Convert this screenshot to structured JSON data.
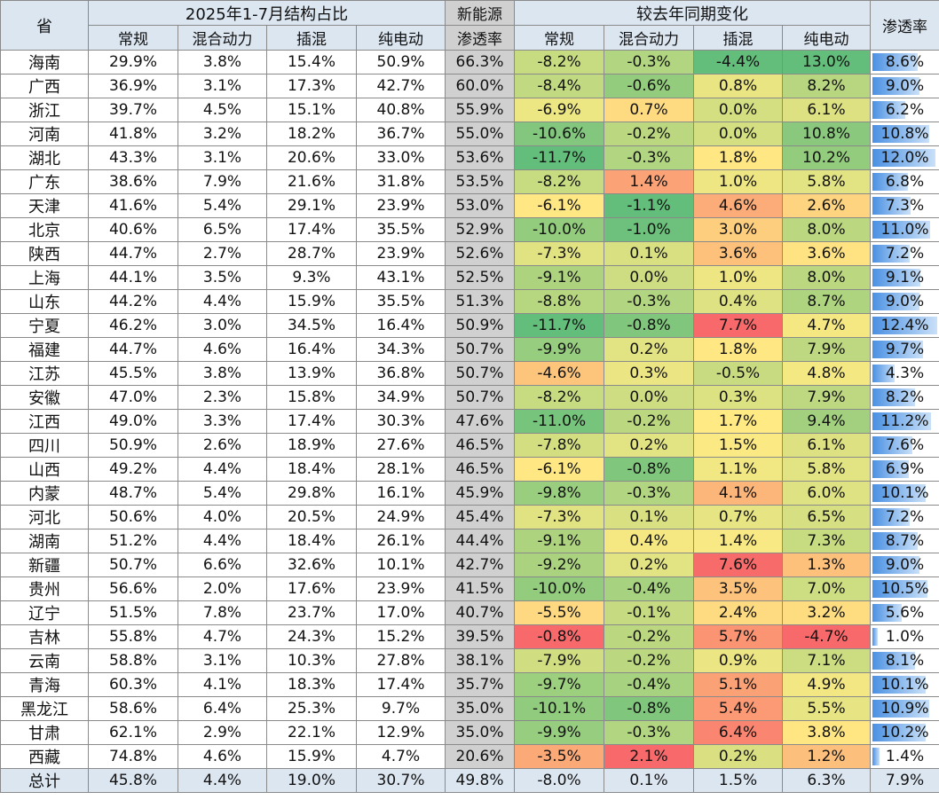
{
  "header": {
    "province": "省",
    "structure_group": "2025年1-7月结构占比",
    "nev_top": "新能源",
    "nev_bottom": "渗透率",
    "change_group": "较去年同期变化",
    "penetration": "渗透率",
    "sub_regular": "常规",
    "sub_hybrid": "混合动力",
    "sub_phev": "插混",
    "sub_bev": "纯电动"
  },
  "colors": {
    "header_bg": "#dce6f1",
    "nev_bg": "#d0d0d0",
    "heat_low": "#f8696b",
    "heat_mid": "#ffeb84",
    "heat_high": "#63be7b",
    "bar_blue": "#4a90e2"
  },
  "rows": [
    {
      "p": "海南",
      "c1": "29.9%",
      "c2": "3.8%",
      "c3": "15.4%",
      "c4": "50.9%",
      "nev": "66.3%",
      "d1": "-8.2%",
      "d2": "-0.3%",
      "d3": "-4.4%",
      "d4": "13.0%",
      "pen": "8.6%"
    },
    {
      "p": "广西",
      "c1": "36.9%",
      "c2": "3.1%",
      "c3": "17.3%",
      "c4": "42.7%",
      "nev": "60.0%",
      "d1": "-8.4%",
      "d2": "-0.6%",
      "d3": "0.8%",
      "d4": "8.2%",
      "pen": "9.0%"
    },
    {
      "p": "浙江",
      "c1": "39.7%",
      "c2": "4.5%",
      "c3": "15.1%",
      "c4": "40.8%",
      "nev": "55.9%",
      "d1": "-6.9%",
      "d2": "0.7%",
      "d3": "0.0%",
      "d4": "6.1%",
      "pen": "6.2%"
    },
    {
      "p": "河南",
      "c1": "41.8%",
      "c2": "3.2%",
      "c3": "18.2%",
      "c4": "36.7%",
      "nev": "55.0%",
      "d1": "-10.6%",
      "d2": "-0.2%",
      "d3": "0.0%",
      "d4": "10.8%",
      "pen": "10.8%"
    },
    {
      "p": "湖北",
      "c1": "43.3%",
      "c2": "3.1%",
      "c3": "20.6%",
      "c4": "33.0%",
      "nev": "53.6%",
      "d1": "-11.7%",
      "d2": "-0.3%",
      "d3": "1.8%",
      "d4": "10.2%",
      "pen": "12.0%"
    },
    {
      "p": "广东",
      "c1": "38.6%",
      "c2": "7.9%",
      "c3": "21.6%",
      "c4": "31.8%",
      "nev": "53.5%",
      "d1": "-8.2%",
      "d2": "1.4%",
      "d3": "1.0%",
      "d4": "5.8%",
      "pen": "6.8%"
    },
    {
      "p": "天津",
      "c1": "41.6%",
      "c2": "5.4%",
      "c3": "29.1%",
      "c4": "23.9%",
      "nev": "53.0%",
      "d1": "-6.1%",
      "d2": "-1.1%",
      "d3": "4.6%",
      "d4": "2.6%",
      "pen": "7.3%"
    },
    {
      "p": "北京",
      "c1": "40.6%",
      "c2": "6.5%",
      "c3": "17.4%",
      "c4": "35.5%",
      "nev": "52.9%",
      "d1": "-10.0%",
      "d2": "-1.0%",
      "d3": "3.0%",
      "d4": "8.0%",
      "pen": "11.0%"
    },
    {
      "p": "陕西",
      "c1": "44.7%",
      "c2": "2.7%",
      "c3": "28.7%",
      "c4": "23.9%",
      "nev": "52.6%",
      "d1": "-7.3%",
      "d2": "0.1%",
      "d3": "3.6%",
      "d4": "3.6%",
      "pen": "7.2%"
    },
    {
      "p": "上海",
      "c1": "44.1%",
      "c2": "3.5%",
      "c3": "9.3%",
      "c4": "43.1%",
      "nev": "52.5%",
      "d1": "-9.1%",
      "d2": "0.0%",
      "d3": "1.0%",
      "d4": "8.0%",
      "pen": "9.1%"
    },
    {
      "p": "山东",
      "c1": "44.2%",
      "c2": "4.4%",
      "c3": "15.9%",
      "c4": "35.5%",
      "nev": "51.3%",
      "d1": "-8.8%",
      "d2": "-0.3%",
      "d3": "0.4%",
      "d4": "8.7%",
      "pen": "9.0%"
    },
    {
      "p": "宁夏",
      "c1": "46.2%",
      "c2": "3.0%",
      "c3": "34.5%",
      "c4": "16.4%",
      "nev": "50.9%",
      "d1": "-11.7%",
      "d2": "-0.8%",
      "d3": "7.7%",
      "d4": "4.7%",
      "pen": "12.4%"
    },
    {
      "p": "福建",
      "c1": "44.7%",
      "c2": "4.6%",
      "c3": "16.4%",
      "c4": "34.3%",
      "nev": "50.7%",
      "d1": "-9.9%",
      "d2": "0.2%",
      "d3": "1.8%",
      "d4": "7.9%",
      "pen": "9.7%"
    },
    {
      "p": "江苏",
      "c1": "45.5%",
      "c2": "3.8%",
      "c3": "13.9%",
      "c4": "36.8%",
      "nev": "50.7%",
      "d1": "-4.6%",
      "d2": "0.3%",
      "d3": "-0.5%",
      "d4": "4.8%",
      "pen": "4.3%"
    },
    {
      "p": "安徽",
      "c1": "47.0%",
      "c2": "2.3%",
      "c3": "15.8%",
      "c4": "34.9%",
      "nev": "50.7%",
      "d1": "-8.2%",
      "d2": "0.0%",
      "d3": "0.3%",
      "d4": "7.9%",
      "pen": "8.2%"
    },
    {
      "p": "江西",
      "c1": "49.0%",
      "c2": "3.3%",
      "c3": "17.4%",
      "c4": "30.3%",
      "nev": "47.6%",
      "d1": "-11.0%",
      "d2": "-0.2%",
      "d3": "1.7%",
      "d4": "9.4%",
      "pen": "11.2%"
    },
    {
      "p": "四川",
      "c1": "50.9%",
      "c2": "2.6%",
      "c3": "18.9%",
      "c4": "27.6%",
      "nev": "46.5%",
      "d1": "-7.8%",
      "d2": "0.2%",
      "d3": "1.5%",
      "d4": "6.1%",
      "pen": "7.6%"
    },
    {
      "p": "山西",
      "c1": "49.2%",
      "c2": "4.4%",
      "c3": "18.4%",
      "c4": "28.1%",
      "nev": "46.5%",
      "d1": "-6.1%",
      "d2": "-0.8%",
      "d3": "1.1%",
      "d4": "5.8%",
      "pen": "6.9%"
    },
    {
      "p": "内蒙",
      "c1": "48.7%",
      "c2": "5.4%",
      "c3": "29.8%",
      "c4": "16.1%",
      "nev": "45.9%",
      "d1": "-9.8%",
      "d2": "-0.3%",
      "d3": "4.1%",
      "d4": "6.0%",
      "pen": "10.1%"
    },
    {
      "p": "河北",
      "c1": "50.6%",
      "c2": "4.0%",
      "c3": "20.5%",
      "c4": "24.9%",
      "nev": "45.4%",
      "d1": "-7.3%",
      "d2": "0.1%",
      "d3": "0.7%",
      "d4": "6.5%",
      "pen": "7.2%"
    },
    {
      "p": "湖南",
      "c1": "51.2%",
      "c2": "4.4%",
      "c3": "18.4%",
      "c4": "26.1%",
      "nev": "44.4%",
      "d1": "-9.1%",
      "d2": "0.4%",
      "d3": "1.4%",
      "d4": "7.3%",
      "pen": "8.7%"
    },
    {
      "p": "新疆",
      "c1": "50.7%",
      "c2": "6.6%",
      "c3": "32.6%",
      "c4": "10.1%",
      "nev": "42.7%",
      "d1": "-9.2%",
      "d2": "0.2%",
      "d3": "7.6%",
      "d4": "1.3%",
      "pen": "9.0%"
    },
    {
      "p": "贵州",
      "c1": "56.6%",
      "c2": "2.0%",
      "c3": "17.6%",
      "c4": "23.9%",
      "nev": "41.5%",
      "d1": "-10.0%",
      "d2": "-0.4%",
      "d3": "3.5%",
      "d4": "7.0%",
      "pen": "10.5%"
    },
    {
      "p": "辽宁",
      "c1": "51.5%",
      "c2": "7.8%",
      "c3": "23.7%",
      "c4": "17.0%",
      "nev": "40.7%",
      "d1": "-5.5%",
      "d2": "-0.1%",
      "d3": "2.4%",
      "d4": "3.2%",
      "pen": "5.6%"
    },
    {
      "p": "吉林",
      "c1": "55.8%",
      "c2": "4.7%",
      "c3": "24.3%",
      "c4": "15.2%",
      "nev": "39.5%",
      "d1": "-0.8%",
      "d2": "-0.2%",
      "d3": "5.7%",
      "d4": "-4.7%",
      "pen": "1.0%"
    },
    {
      "p": "云南",
      "c1": "58.8%",
      "c2": "3.1%",
      "c3": "10.3%",
      "c4": "27.8%",
      "nev": "38.1%",
      "d1": "-7.9%",
      "d2": "-0.2%",
      "d3": "0.9%",
      "d4": "7.1%",
      "pen": "8.1%"
    },
    {
      "p": "青海",
      "c1": "60.3%",
      "c2": "4.1%",
      "c3": "18.3%",
      "c4": "17.4%",
      "nev": "35.7%",
      "d1": "-9.7%",
      "d2": "-0.4%",
      "d3": "5.1%",
      "d4": "4.9%",
      "pen": "10.1%"
    },
    {
      "p": "黑龙江",
      "c1": "58.6%",
      "c2": "6.4%",
      "c3": "25.3%",
      "c4": "9.7%",
      "nev": "35.0%",
      "d1": "-10.1%",
      "d2": "-0.8%",
      "d3": "5.4%",
      "d4": "5.5%",
      "pen": "10.9%"
    },
    {
      "p": "甘肃",
      "c1": "62.1%",
      "c2": "2.9%",
      "c3": "22.1%",
      "c4": "12.9%",
      "nev": "35.0%",
      "d1": "-9.9%",
      "d2": "-0.3%",
      "d3": "6.4%",
      "d4": "3.8%",
      "pen": "10.2%"
    },
    {
      "p": "西藏",
      "c1": "74.8%",
      "c2": "4.6%",
      "c3": "15.9%",
      "c4": "4.7%",
      "nev": "20.6%",
      "d1": "-3.5%",
      "d2": "2.1%",
      "d3": "0.2%",
      "d4": "1.2%",
      "pen": "1.4%"
    }
  ],
  "total": {
    "p": "总计",
    "c1": "45.8%",
    "c2": "4.4%",
    "c3": "19.0%",
    "c4": "30.7%",
    "nev": "49.8%",
    "d1": "-8.0%",
    "d2": "0.1%",
    "d3": "1.5%",
    "d4": "6.3%",
    "pen": "7.9%"
  }
}
